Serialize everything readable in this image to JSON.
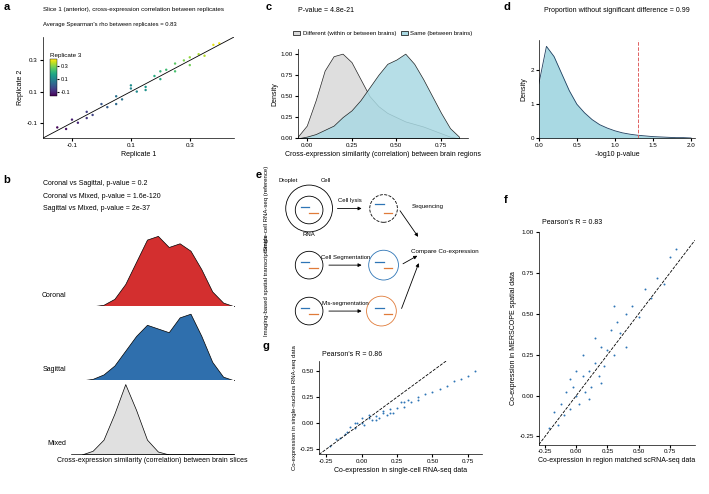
{
  "chart_data": [
    {
      "panel_label": "a",
      "type": "scatter",
      "title": "Slice 1 (anterior), cross-expression correlation between replicates",
      "subtitle": "Average Spearman's rho between replicates = 0.83",
      "xlabel": "Replicate 1",
      "ylabel": "Replicate 2",
      "x": [
        -0.15,
        -0.12,
        -0.1,
        -0.08,
        -0.05,
        -0.03,
        0,
        0.02,
        0.05,
        0.07,
        0.1,
        0.12,
        0.15,
        0.18,
        0.2,
        0.22,
        0.25,
        0.28,
        0.3,
        0.33,
        0.35,
        0.38,
        0.4,
        0.05,
        0.1,
        0.15,
        0.2,
        -0.05,
        0.25,
        0.3
      ],
      "y": [
        -0.13,
        -0.14,
        -0.08,
        -0.1,
        -0.03,
        -0.05,
        0.02,
        0.0,
        0.07,
        0.05,
        0.12,
        0.1,
        0.13,
        0.2,
        0.18,
        0.24,
        0.23,
        0.3,
        0.27,
        0.34,
        0.33,
        0.4,
        0.41,
        0.02,
        0.14,
        0.11,
        0.23,
        -0.07,
        0.28,
        0.32
      ],
      "color_values": [
        -0.14,
        -0.12,
        -0.1,
        -0.09,
        -0.05,
        -0.04,
        0.0,
        0.01,
        0.06,
        0.06,
        0.1,
        0.11,
        0.14,
        0.19,
        0.19,
        0.23,
        0.24,
        0.29,
        0.28,
        0.33,
        0.34,
        0.38,
        0.39,
        0.04,
        0.12,
        0.13,
        0.21,
        -0.06,
        0.26,
        0.31
      ],
      "colorbar": {
        "title": "Replicate 3",
        "range": [
          -0.15,
          0.4
        ],
        "ticks": [
          -0.1,
          0.1,
          0.3
        ]
      },
      "xlim": [
        -0.2,
        0.45
      ],
      "ylim": [
        -0.2,
        0.45
      ],
      "xticks": [
        -0.1,
        0.1,
        0.3
      ],
      "yticks": [
        -0.1,
        0.1,
        0.3
      ]
    },
    {
      "panel_label": "b",
      "type": "density",
      "annotations": [
        "Coronal vs Sagittal, p-value = 0.2",
        "Coronal vs Mixed, p-value = 1.6e-120",
        "Sagittal vs Mixed, p-value = 2e-37"
      ],
      "xlabel": "Cross-expression similarity (correlation) between brain slices",
      "x": [
        0.3,
        0.35,
        0.4,
        0.45,
        0.5,
        0.55,
        0.6,
        0.65,
        0.7,
        0.75,
        0.8,
        0.85,
        0.9,
        0.95,
        1.0
      ],
      "series": [
        {
          "name": "Coronal",
          "color": "#d32f2f",
          "values": [
            0,
            0,
            0.02,
            0.1,
            0.3,
            0.6,
            0.9,
            0.95,
            0.8,
            0.85,
            0.75,
            0.5,
            0.2,
            0.05,
            0
          ]
        },
        {
          "name": "Sagittal",
          "color": "#2f6fad",
          "values": [
            0,
            0.02,
            0.08,
            0.2,
            0.4,
            0.6,
            0.75,
            0.7,
            0.65,
            0.85,
            0.9,
            0.6,
            0.25,
            0.05,
            0
          ]
        },
        {
          "name": "Mixed",
          "color": "#e0e0e0",
          "values": [
            0,
            0.05,
            0.2,
            0.55,
            0.95,
            0.6,
            0.2,
            0.04,
            0,
            0,
            0,
            0,
            0,
            0,
            0
          ]
        }
      ],
      "xlim": [
        0.25,
        1.0
      ],
      "ylim": [
        0,
        1
      ],
      "tick_labels": false
    },
    {
      "panel_label": "c",
      "type": "density",
      "annotations": [
        "P-value = 4.8e-21"
      ],
      "xlabel": "Cross-expression similarity (correlation) between brain regions",
      "ylabel": "Density",
      "x": [
        -0.05,
        0,
        0.05,
        0.1,
        0.15,
        0.2,
        0.25,
        0.3,
        0.35,
        0.4,
        0.45,
        0.5,
        0.55,
        0.6,
        0.65,
        0.7,
        0.75,
        0.8,
        0.85
      ],
      "series": [
        {
          "name": "Different (within or between brains)",
          "color": "#d9d9d9",
          "values": [
            0.02,
            0.15,
            0.45,
            0.8,
            0.97,
            1.0,
            0.9,
            0.7,
            0.5,
            0.38,
            0.3,
            0.25,
            0.2,
            0.17,
            0.14,
            0.1,
            0.06,
            0.02,
            0.0
          ]
        },
        {
          "name": "Same (between brains)",
          "color": "#a9d9e3",
          "values": [
            0,
            0.02,
            0.05,
            0.1,
            0.15,
            0.25,
            0.33,
            0.45,
            0.6,
            0.75,
            0.88,
            0.93,
            1.0,
            0.88,
            0.7,
            0.5,
            0.3,
            0.12,
            0.02
          ]
        }
      ],
      "legend": "upper center",
      "xlim": [
        -0.05,
        0.9
      ],
      "ylim": [
        0,
        1.05
      ],
      "xticks": [
        {
          "value": 0,
          "label": "0.00"
        },
        0.25,
        {
          "value": 0.5,
          "label": "0.50"
        },
        0.75
      ],
      "yticks": [
        {
          "value": 0,
          "label": "0.00"
        },
        0.25,
        {
          "value": 0.5,
          "label": "0.50"
        },
        0.75,
        {
          "value": 1,
          "label": "1.00"
        }
      ]
    },
    {
      "panel_label": "d",
      "type": "density",
      "title": "Proportion without significant difference = 0.99",
      "xlabel": "-log10 p-value",
      "ylabel": "Density",
      "x": [
        0,
        0.1,
        0.2,
        0.3,
        0.4,
        0.5,
        0.6,
        0.7,
        0.8,
        0.9,
        1.0,
        1.1,
        1.2,
        1.3,
        1.4,
        1.5,
        1.6,
        1.7,
        1.8,
        1.9,
        2.0
      ],
      "values": [
        1.6,
        2.7,
        2.4,
        1.9,
        1.4,
        1.0,
        0.75,
        0.55,
        0.4,
        0.3,
        0.22,
        0.16,
        0.12,
        0.09,
        0.07,
        0.05,
        0.04,
        0.03,
        0.02,
        0.02,
        0.01
      ],
      "color": "#a9d9e3",
      "threshold": {
        "value": 1.3,
        "color": "#e06060",
        "line_style": "dashed"
      },
      "xlim": [
        0,
        2.05
      ],
      "ylim": [
        0,
        2.9
      ],
      "xticks": [
        {
          "value": 0,
          "label": "0.0"
        },
        0.5,
        {
          "value": 1,
          "label": "1.0"
        },
        1.5,
        {
          "value": 2,
          "label": "2.0"
        }
      ],
      "yticks": [
        0,
        1,
        2
      ]
    },
    {
      "panel_label": "e",
      "type": "diagram",
      "texts": {
        "scrna": "Single-cell RNA-seq (reference)",
        "droplet": "Droplet",
        "cell": "Cell",
        "rna": "RNA",
        "lysis": "Cell lysis",
        "sequencing": "Sequencing",
        "spatial": "Imaging-based spatial transcriptomics",
        "segmentation": "Cell Segmentation",
        "missegmentation": "Mis-segmentation",
        "compare": "Compare Co-expression"
      }
    },
    {
      "panel_label": "f",
      "type": "scatter",
      "annotations": [
        "Pearson's R = 0.83"
      ],
      "xlabel": "Co-expression in region matched scRNA-seq data",
      "ylabel": "Co-expression in MERSCOPE spatial data",
      "color": "#2e75b6",
      "x": [
        -0.22,
        -0.18,
        -0.15,
        -0.12,
        -0.1,
        -0.08,
        -0.05,
        -0.03,
        0,
        0.02,
        0.05,
        0.07,
        0.1,
        0.12,
        0.15,
        0.18,
        0.2,
        0.22,
        0.25,
        0.28,
        0.3,
        0.33,
        0.35,
        0.4,
        0.45,
        0.5,
        0.55,
        0.6,
        0.65,
        0.7,
        0.75,
        0.8,
        0.05,
        0.1,
        0.15,
        0.2,
        0.0,
        -0.05,
        0.3,
        0.4
      ],
      "y": [
        -0.2,
        -0.1,
        -0.18,
        -0.05,
        -0.12,
        0.02,
        -0.08,
        0.05,
        0.0,
        -0.05,
        0.12,
        0.02,
        0.15,
        0.05,
        0.2,
        0.12,
        0.3,
        0.18,
        0.28,
        0.4,
        0.25,
        0.45,
        0.38,
        0.5,
        0.55,
        0.48,
        0.65,
        0.6,
        0.72,
        0.68,
        0.85,
        0.9,
        0.25,
        -0.02,
        0.35,
        0.08,
        0.15,
        0.1,
        0.55,
        0.3
      ],
      "xlim": [
        -0.3,
        0.95
      ],
      "ylim": [
        -0.3,
        1.0
      ],
      "xticks": [
        -0.25,
        {
          "value": 0,
          "label": "0.00"
        },
        0.25,
        {
          "value": 0.5,
          "label": "0.50"
        },
        0.75
      ],
      "yticks": [
        -0.25,
        {
          "value": 0,
          "label": "0.00"
        },
        0.25,
        {
          "value": 0.5,
          "label": "0.50"
        },
        0.75,
        {
          "value": 1,
          "label": "1.00"
        }
      ]
    },
    {
      "panel_label": "g",
      "type": "scatter",
      "annotations": [
        "Pearson's R = 0.86"
      ],
      "xlabel": "Co-expression in single-cell RNA-seq data",
      "ylabel": "Co-expression in single-nucleus RNA-seq data",
      "color": "#2e75b6",
      "x": [
        -0.22,
        -0.18,
        -0.15,
        -0.12,
        -0.1,
        -0.08,
        -0.05,
        -0.03,
        0,
        0.02,
        0.05,
        0.07,
        0.1,
        0.12,
        0.15,
        0.18,
        0.2,
        0.22,
        0.25,
        0.28,
        0.3,
        0.33,
        0.35,
        0.4,
        0.45,
        0.5,
        0.55,
        0.6,
        0.65,
        0.7,
        0.75,
        0.8,
        0.05,
        0.1,
        0.15,
        0.2,
        0.0,
        -0.05,
        0.3,
        0.4
      ],
      "y": [
        -0.22,
        -0.15,
        -0.14,
        -0.1,
        -0.08,
        -0.04,
        -0.05,
        0.0,
        0.0,
        -0.02,
        0.05,
        0.03,
        0.07,
        0.05,
        0.1,
        0.08,
        0.14,
        0.1,
        0.15,
        0.2,
        0.16,
        0.22,
        0.2,
        0.25,
        0.28,
        0.3,
        0.33,
        0.36,
        0.4,
        0.42,
        0.45,
        0.5,
        0.08,
        0.03,
        0.12,
        0.1,
        0.05,
        0.0,
        0.2,
        0.22
      ],
      "xlim": [
        -0.3,
        0.85
      ],
      "ylim": [
        -0.3,
        0.6
      ],
      "xticks": [
        -0.25,
        {
          "value": 0,
          "label": "0.00"
        },
        0.25,
        {
          "value": 0.5,
          "label": "0.50"
        },
        0.75
      ],
      "yticks": [
        -0.25,
        {
          "value": 0,
          "label": "0.00"
        },
        0.25,
        {
          "value": 0.5,
          "label": "0.50"
        }
      ]
    }
  ]
}
